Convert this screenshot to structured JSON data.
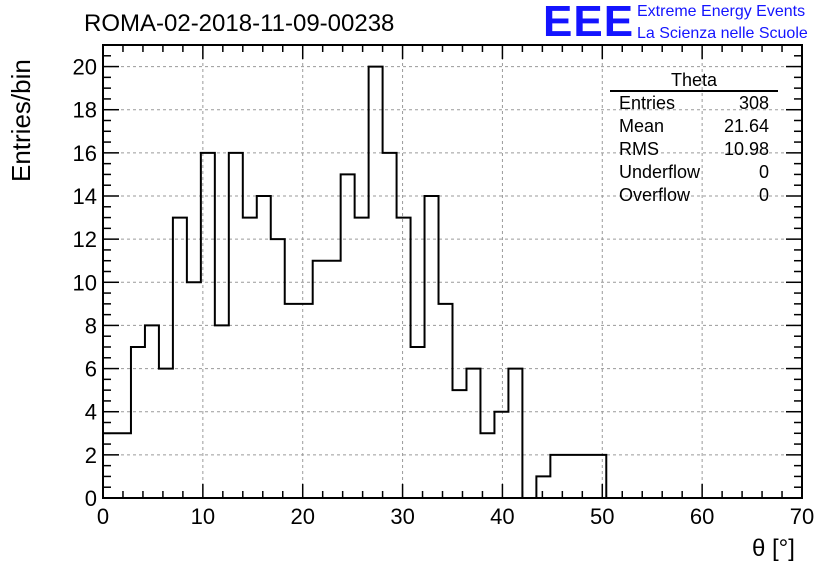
{
  "header": {
    "run_title": "ROMA-02-2018-11-09-00238",
    "logo_text": "EEE",
    "logo_line1": "Extreme Energy Events",
    "logo_line2": "La Scienza nelle Scuole"
  },
  "stats_box": {
    "title": "Theta",
    "rows": [
      {
        "label": "Entries",
        "value": "308"
      },
      {
        "label": "Mean",
        "value": "21.64"
      },
      {
        "label": "RMS",
        "value": "10.98"
      },
      {
        "label": "Underflow",
        "value": "0"
      },
      {
        "label": "Overflow",
        "value": "0"
      }
    ]
  },
  "chart_data": {
    "type": "bar",
    "style": "step-histogram",
    "title": "ROMA-02-2018-11-09-00238",
    "xlabel": "θ [°]",
    "ylabel": "Entries/bin",
    "xlim": [
      0,
      70
    ],
    "ylim": [
      0,
      21
    ],
    "x_ticks": [
      0,
      10,
      20,
      30,
      40,
      50,
      60,
      70
    ],
    "y_ticks": [
      0,
      2,
      4,
      6,
      8,
      10,
      12,
      14,
      16,
      18,
      20
    ],
    "grid": true,
    "bin_edges": [
      0,
      1.4,
      2.8,
      4.2,
      5.6,
      7.0,
      8.4,
      9.8,
      11.2,
      12.6,
      14.0,
      15.4,
      16.8,
      18.2,
      19.6,
      21.0,
      22.4,
      23.8,
      25.2,
      26.6,
      28.0,
      29.4,
      30.8,
      32.2,
      33.6,
      35.0,
      36.4,
      37.8,
      39.2,
      40.6,
      42.0,
      43.4,
      44.8,
      46.2,
      47.6,
      49.0,
      50.4
    ],
    "values": [
      3,
      3,
      7,
      8,
      6,
      13,
      10,
      16,
      8,
      16,
      13,
      14,
      12,
      9,
      9,
      11,
      11,
      15,
      13,
      20,
      16,
      13,
      7,
      14,
      9,
      5,
      6,
      3,
      4,
      6,
      0,
      1,
      2,
      2,
      2,
      2
    ]
  },
  "colors": {
    "line": "#000000",
    "grid": "#9a9a9a",
    "logo": "#1414ff"
  }
}
